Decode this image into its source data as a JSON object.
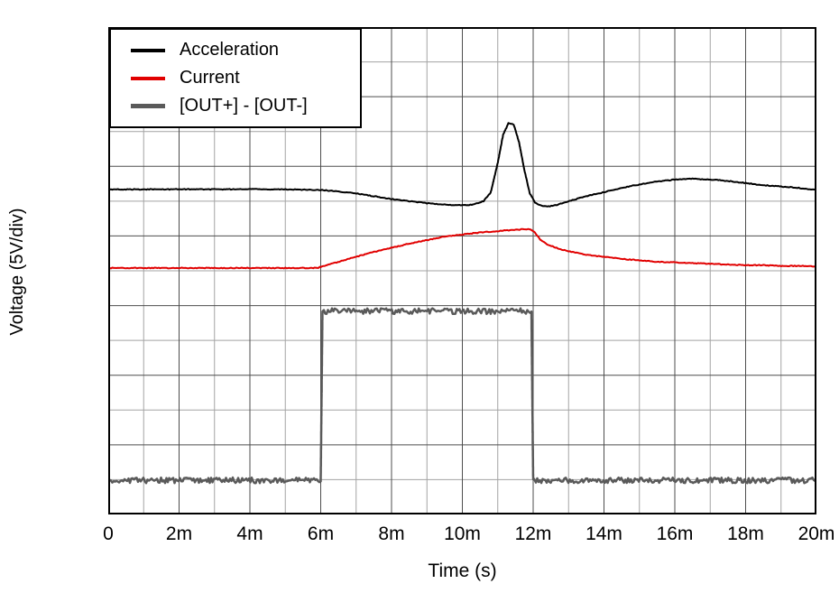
{
  "figure": {
    "background": "#ffffff"
  },
  "chart_data": {
    "type": "line",
    "title": "",
    "xlabel": "Time (s)",
    "ylabel": "Voltage (5V/div)",
    "x_unit": "ms",
    "xlim": [
      0,
      20
    ],
    "ylim_divisions": [
      0,
      7
    ],
    "volts_per_div": 5,
    "legend_position": "top-left",
    "x_ticks": [
      {
        "value": 0,
        "label": "0"
      },
      {
        "value": 2,
        "label": "2m"
      },
      {
        "value": 4,
        "label": "4m"
      },
      {
        "value": 6,
        "label": "6m"
      },
      {
        "value": 8,
        "label": "8m"
      },
      {
        "value": 10,
        "label": "10m"
      },
      {
        "value": 12,
        "label": "12m"
      },
      {
        "value": 14,
        "label": "14m"
      },
      {
        "value": 16,
        "label": "16m"
      },
      {
        "value": 18,
        "label": "18m"
      },
      {
        "value": 20,
        "label": "20m"
      }
    ],
    "grid": {
      "minor_cols": 20,
      "minor_rows": 14,
      "major_every": 2,
      "minor_color": "#a3a3a3",
      "major_color": "#4d4d4d",
      "border_color": "#000000"
    },
    "series": [
      {
        "name": "Acceleration",
        "color": "#000000",
        "width": 2,
        "noise": 0.012,
        "swatch_height": 4,
        "points": [
          [
            0,
            4.67
          ],
          [
            1,
            4.67
          ],
          [
            2,
            4.67
          ],
          [
            3,
            4.67
          ],
          [
            4,
            4.67
          ],
          [
            5,
            4.67
          ],
          [
            6,
            4.66
          ],
          [
            6.5,
            4.64
          ],
          [
            7,
            4.61
          ],
          [
            7.5,
            4.57
          ],
          [
            8,
            4.53
          ],
          [
            8.5,
            4.5
          ],
          [
            9,
            4.47
          ],
          [
            9.5,
            4.45
          ],
          [
            10,
            4.44
          ],
          [
            10.3,
            4.45
          ],
          [
            10.6,
            4.5
          ],
          [
            10.8,
            4.62
          ],
          [
            11,
            5.05
          ],
          [
            11.15,
            5.45
          ],
          [
            11.3,
            5.62
          ],
          [
            11.45,
            5.6
          ],
          [
            11.6,
            5.35
          ],
          [
            11.75,
            4.95
          ],
          [
            11.9,
            4.62
          ],
          [
            12.05,
            4.48
          ],
          [
            12.2,
            4.44
          ],
          [
            12.4,
            4.42
          ],
          [
            12.7,
            4.45
          ],
          [
            13,
            4.5
          ],
          [
            13.5,
            4.57
          ],
          [
            14,
            4.63
          ],
          [
            14.5,
            4.69
          ],
          [
            15,
            4.74
          ],
          [
            15.5,
            4.78
          ],
          [
            16,
            4.81
          ],
          [
            16.5,
            4.82
          ],
          [
            17,
            4.81
          ],
          [
            17.5,
            4.79
          ],
          [
            18,
            4.76
          ],
          [
            18.5,
            4.73
          ],
          [
            19,
            4.71
          ],
          [
            19.5,
            4.69
          ],
          [
            20,
            4.66
          ]
        ]
      },
      {
        "name": "Current",
        "color": "#e10000",
        "width": 2,
        "noise": 0.012,
        "swatch_height": 4,
        "points": [
          [
            0,
            3.54
          ],
          [
            1,
            3.54
          ],
          [
            2,
            3.54
          ],
          [
            3,
            3.54
          ],
          [
            4,
            3.54
          ],
          [
            5,
            3.54
          ],
          [
            5.9,
            3.54
          ],
          [
            6.3,
            3.6
          ],
          [
            7,
            3.7
          ],
          [
            7.5,
            3.77
          ],
          [
            8,
            3.83
          ],
          [
            8.5,
            3.89
          ],
          [
            9,
            3.94
          ],
          [
            9.5,
            3.99
          ],
          [
            10,
            4.02
          ],
          [
            10.5,
            4.05
          ],
          [
            11,
            4.07
          ],
          [
            11.5,
            4.09
          ],
          [
            11.9,
            4.1
          ],
          [
            12.05,
            4.05
          ],
          [
            12.2,
            3.95
          ],
          [
            12.4,
            3.88
          ],
          [
            12.7,
            3.82
          ],
          [
            13,
            3.78
          ],
          [
            13.5,
            3.73
          ],
          [
            14,
            3.7
          ],
          [
            14.5,
            3.67
          ],
          [
            15,
            3.65
          ],
          [
            15.5,
            3.63
          ],
          [
            16,
            3.62
          ],
          [
            16.5,
            3.61
          ],
          [
            17,
            3.6
          ],
          [
            17.5,
            3.59
          ],
          [
            18,
            3.58
          ],
          [
            18.5,
            3.58
          ],
          [
            19,
            3.57
          ],
          [
            19.5,
            3.57
          ],
          [
            20,
            3.56
          ]
        ]
      },
      {
        "name": "[OUT+] - [OUT-]",
        "color": "#5a5a5a",
        "width": 2.5,
        "noise": 0.08,
        "swatch_height": 5,
        "points": [
          [
            0,
            0.49
          ],
          [
            6,
            0.49
          ],
          [
            6.05,
            2.92
          ],
          [
            11.95,
            2.92
          ],
          [
            12,
            0.49
          ],
          [
            20,
            0.49
          ]
        ]
      }
    ]
  }
}
